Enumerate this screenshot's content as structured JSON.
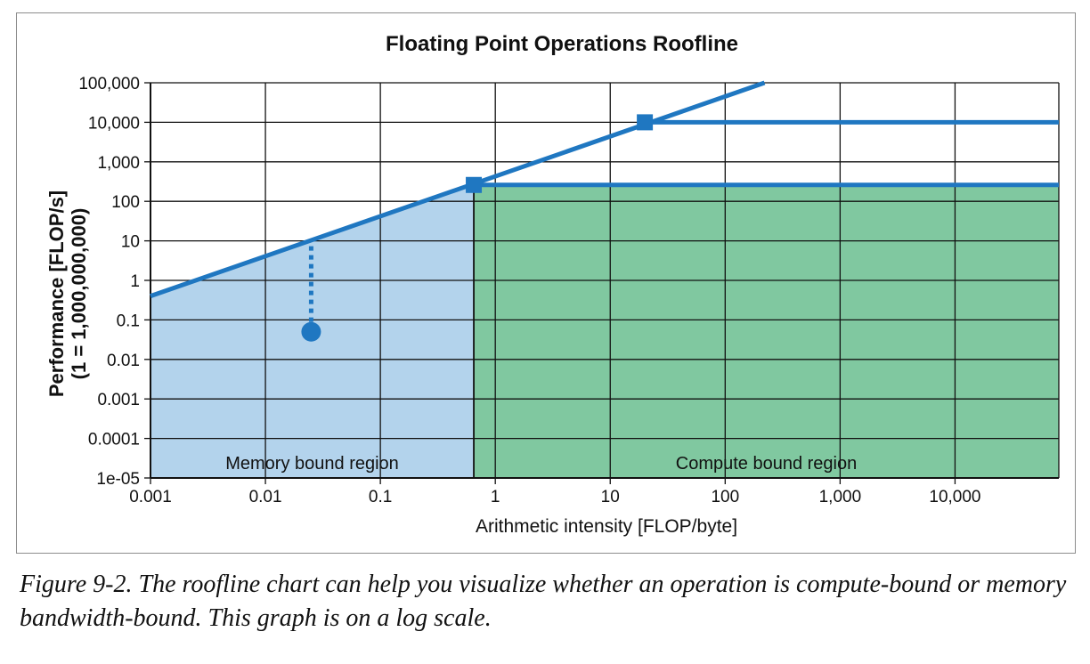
{
  "chart_data": {
    "type": "line",
    "title": "Floating Point Operations Roofline",
    "xlabel": "Arithmetic intensity [FLOP/byte]",
    "ylabel": [
      "Performance [FLOP/s]",
      "(1 = 1,000,000,000)"
    ],
    "x_scale": "log",
    "y_scale": "log",
    "xlim": [
      0.001,
      80000
    ],
    "ylim": [
      1e-05,
      100000
    ],
    "grid": true,
    "x_ticks": [
      {
        "value": 0.001,
        "label": "0.001"
      },
      {
        "value": 0.01,
        "label": "0.01"
      },
      {
        "value": 0.1,
        "label": "0.1"
      },
      {
        "value": 1,
        "label": "1"
      },
      {
        "value": 10,
        "label": "10"
      },
      {
        "value": 100,
        "label": "100"
      },
      {
        "value": 1000,
        "label": "1,000"
      },
      {
        "value": 10000,
        "label": "10,000"
      }
    ],
    "y_ticks": [
      {
        "value": 100000,
        "label": "100,000"
      },
      {
        "value": 10000,
        "label": "10,000"
      },
      {
        "value": 1000,
        "label": "1,000"
      },
      {
        "value": 100,
        "label": "100"
      },
      {
        "value": 10,
        "label": "10"
      },
      {
        "value": 1,
        "label": "1"
      },
      {
        "value": 0.1,
        "label": "0.1"
      },
      {
        "value": 0.01,
        "label": "0.01"
      },
      {
        "value": 0.001,
        "label": "0.001"
      },
      {
        "value": 0.0001,
        "label": "0.0001"
      },
      {
        "value": 1e-05,
        "label": "1e-05"
      }
    ],
    "series": [
      {
        "role": "memory-roof",
        "points": [
          [
            0.001,
            0.4
          ],
          [
            220,
            100000
          ]
        ]
      },
      {
        "role": "compute-roof-high",
        "points": [
          [
            20,
            10000
          ],
          [
            80000,
            10000
          ]
        ]
      },
      {
        "role": "compute-roof-low",
        "points": [
          [
            0.65,
            260
          ],
          [
            80000,
            260
          ]
        ]
      }
    ],
    "ridge_points": [
      {
        "x": 0.65,
        "y": 260
      },
      {
        "x": 20,
        "y": 10000
      }
    ],
    "operation_point": {
      "x": 0.025,
      "y": 0.05,
      "attainable_y": 10
    },
    "regions": [
      {
        "label": "Memory bound region",
        "x_range": [
          0.001,
          0.65
        ],
        "y_top": "roof",
        "color": "#b3d3ec"
      },
      {
        "label": "Compute bound region",
        "x_range": [
          0.65,
          80000
        ],
        "y_top": 260,
        "color": "#80c8a0"
      }
    ],
    "colors": {
      "line": "#1f77c1",
      "memory_region": "#b3d3ec",
      "compute_region": "#80c8a0",
      "grid": "#111111"
    }
  },
  "caption": "Figure 9-2. The roofline chart can help you visualize whether an operation is compute-bound or memory bandwidth-bound. This graph is on a log scale."
}
